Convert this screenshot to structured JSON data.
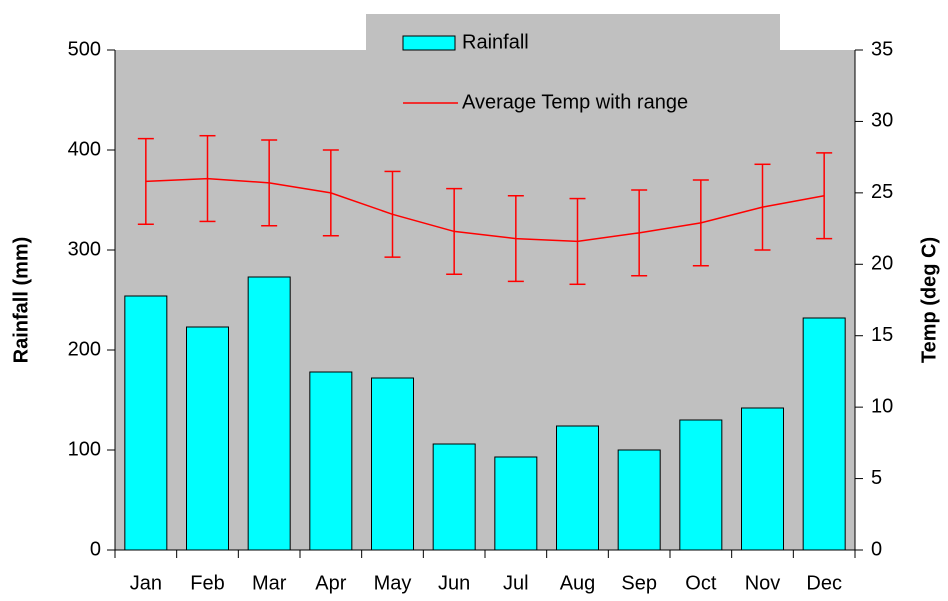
{
  "chart_data": {
    "type": "bar-line",
    "categories": [
      "Jan",
      "Feb",
      "Mar",
      "Apr",
      "May",
      "Jun",
      "Jul",
      "Aug",
      "Sep",
      "Oct",
      "Nov",
      "Dec"
    ],
    "ylabel": "Rainfall (mm)",
    "y2label": "Temp (deg C)",
    "ylim": [
      0,
      500
    ],
    "yticks": [
      0,
      100,
      200,
      300,
      400,
      500
    ],
    "y2lim": [
      0,
      35
    ],
    "y2ticks": [
      0,
      5,
      10,
      15,
      20,
      25,
      30,
      35
    ],
    "plot_background": "#c0c0c0",
    "series": [
      {
        "name": "Rainfall",
        "type": "bar",
        "color": "#00ffff",
        "values": [
          254,
          223,
          273,
          178,
          172,
          106,
          93,
          124,
          100,
          130,
          142,
          232
        ]
      },
      {
        "name": "Average Temp with range",
        "type": "line",
        "axis": "y2",
        "color": "#ff0000",
        "values": [
          25.8,
          26.0,
          25.7,
          25.0,
          23.5,
          22.3,
          21.8,
          21.6,
          22.2,
          22.9,
          24.0,
          24.8
        ],
        "errors": [
          3,
          3,
          3,
          3,
          3,
          3,
          3,
          3,
          3,
          3,
          3,
          3
        ]
      }
    ]
  }
}
